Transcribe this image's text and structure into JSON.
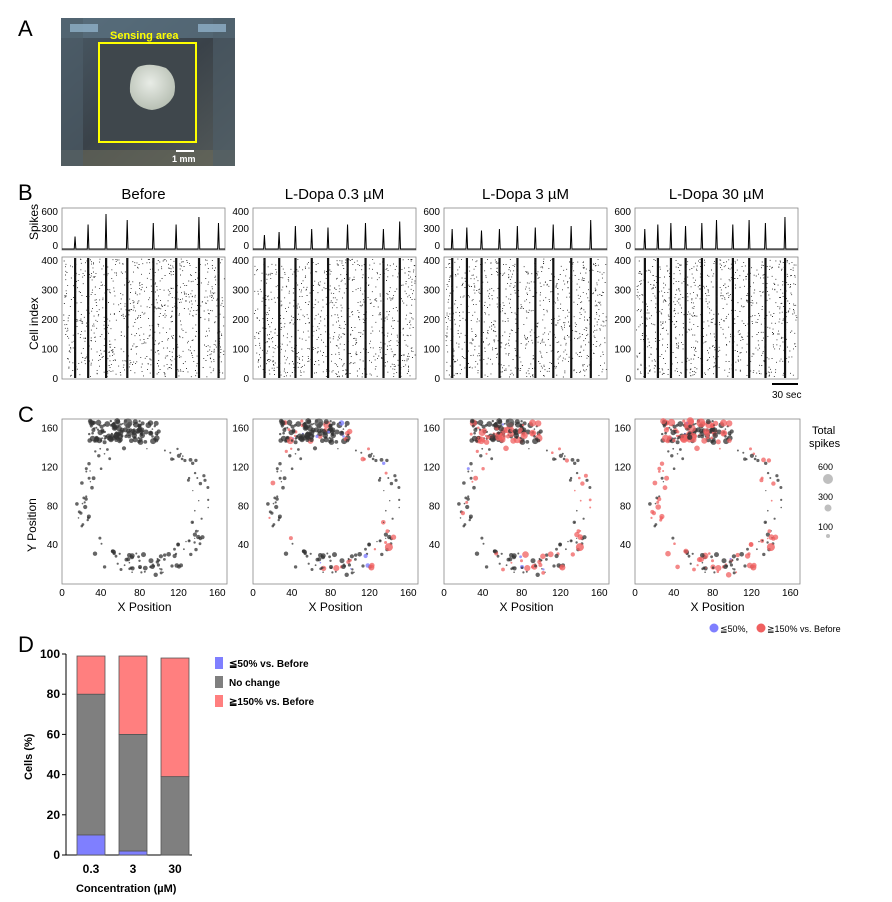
{
  "panel_letters": [
    "A",
    "B",
    "C",
    "D"
  ],
  "panel_a": {
    "label": "Sensing area",
    "scale_bar": "1 mm"
  },
  "panel_b": {
    "conditions": [
      "Before",
      "L-Dopa 0.3 µM",
      "L-Dopa 3 µM",
      "L-Dopa 30 µM"
    ],
    "spikes_ylabel": "Spikes",
    "raster_ylabel": "Cell index",
    "spikes_ticks": [
      [
        "600",
        "300",
        "0"
      ],
      [
        "400",
        "200",
        "0"
      ],
      [
        "600",
        "300",
        "0"
      ],
      [
        "600",
        "300",
        "0"
      ]
    ],
    "raster_ticks": [
      "400",
      "300",
      "200",
      "100",
      "0"
    ],
    "time_scale": "30 sec"
  },
  "panel_c": {
    "xlabel": "X Position",
    "ylabel": "Y Position",
    "x_ticks": [
      "0",
      "40",
      "80",
      "120",
      "160"
    ],
    "y_ticks": [
      "160",
      "120",
      "80",
      "40"
    ],
    "size_legend_title": [
      "Total",
      "spikes"
    ],
    "size_legend": [
      "600",
      "300",
      "100"
    ],
    "color_legend": [
      "≦50%,",
      "≧150% vs. Before"
    ],
    "colors": {
      "decrease": "#7f7fff",
      "nochange": "#333333",
      "increase": "#f06060"
    }
  },
  "chart_data": {
    "type": "bar",
    "stacked": true,
    "categories": [
      "0.3",
      "3",
      "30"
    ],
    "series": [
      {
        "name": "≦50% vs. Before",
        "values": [
          10,
          2,
          0
        ],
        "color": "#7f7fff"
      },
      {
        "name": "No change",
        "values": [
          70,
          58,
          39
        ],
        "color": "#7f7f7f"
      },
      {
        "name": "≧150% vs. Before",
        "values": [
          19,
          39,
          59
        ],
        "color": "#ff7f7f"
      }
    ],
    "xlabel": "Concentration (µM)",
    "ylabel": "Cells (%)",
    "ylim": [
      0,
      100
    ],
    "yticks": [
      0,
      20,
      40,
      60,
      80,
      100
    ]
  }
}
